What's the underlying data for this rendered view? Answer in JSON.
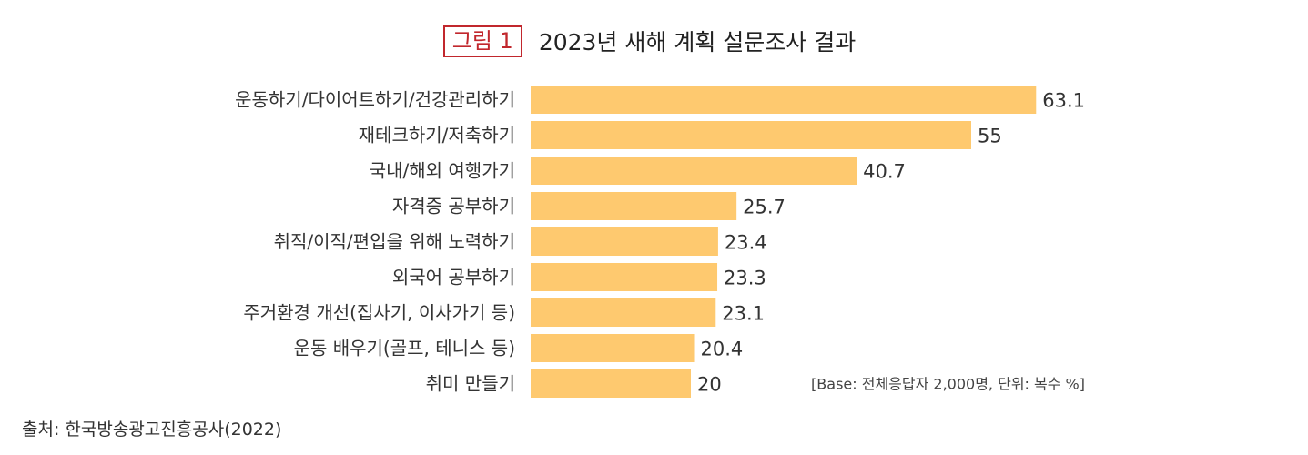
{
  "figure": {
    "label": "그림 1",
    "title": "2023년 새해 계획 설문조사 결과"
  },
  "chart_data": {
    "type": "bar",
    "orientation": "horizontal",
    "categories": [
      "운동하기/다이어트하기/건강관리하기",
      "재테크하기/저축하기",
      "국내/해외 여행가기",
      "자격증 공부하기",
      "취직/이직/편입을 위해 노력하기",
      "외국어 공부하기",
      "주거환경 개선(집사기, 이사가기 등)",
      "운동 배우기(골프, 테니스 등)",
      "취미 만들기"
    ],
    "values": [
      63.1,
      55,
      40.7,
      25.7,
      23.4,
      23.3,
      23.1,
      20.4,
      20
    ],
    "value_labels": [
      "63.1",
      "55",
      "40.7",
      "25.7",
      "23.4",
      "23.3",
      "23.1",
      "20.4",
      "20"
    ],
    "bar_color": "#fec96f",
    "base_note": "[Base: 전체응답자 2,000명, 단위: 복수 %]",
    "grid": false
  },
  "source": "출처: 한국방송광고진흥공사(2022)"
}
